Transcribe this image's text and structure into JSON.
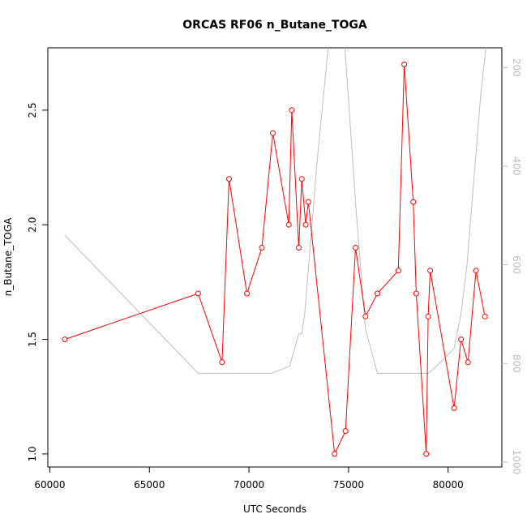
{
  "chart_data": {
    "type": "line",
    "title": "ORCAS RF06 n_Butane_TOGA",
    "xlabel": "UTC Seconds",
    "ylabel": "n_Butane_TOGA",
    "xlim": [
      59900,
      82700
    ],
    "ylim": [
      0.943,
      2.772
    ],
    "x_ticks": [
      60000,
      65000,
      70000,
      75000,
      80000
    ],
    "y_ticks": [
      1.0,
      1.5,
      2.0,
      2.5
    ],
    "y_tick_labels": [
      "1.0",
      "1.5",
      "2.0",
      "2.5"
    ],
    "grid": false,
    "series": [
      {
        "color": "#ff0000",
        "marker": "open-circle",
        "x": [
          60750,
          67450,
          68650,
          69000,
          69900,
          70650,
          71200,
          72000,
          72150,
          72500,
          72650,
          72850,
          72980,
          74300,
          74850,
          75350,
          75850,
          76450,
          77500,
          77800,
          78250,
          78400,
          78900,
          79000,
          79100,
          80300,
          80650,
          81000,
          81400,
          81850
        ],
        "y": [
          1.5,
          1.7,
          1.4,
          2.2,
          1.7,
          1.9,
          2.4,
          2.0,
          2.5,
          1.9,
          2.2,
          2.0,
          2.1,
          1.0,
          1.1,
          1.9,
          1.6,
          1.7,
          1.8,
          2.7,
          2.1,
          1.7,
          1.0,
          1.6,
          1.8,
          1.2,
          1.5,
          1.4,
          1.8,
          1.6
        ]
      },
      {
        "color": "#bdbdbd",
        "axis": "right",
        "x": [
          60750,
          67450,
          71150,
          72050,
          72500,
          72650,
          72800,
          73000,
          73400,
          74000,
          74800,
          75400,
          75850,
          76450,
          77500,
          78400,
          79000,
          79300,
          80300,
          80650,
          80950,
          81350,
          81650,
          81900
        ],
        "y": [
          540,
          820,
          820,
          805,
          740,
          740,
          700,
          600,
          400,
          150,
          150,
          500,
          730,
          820,
          820,
          820,
          820,
          810,
          770,
          700,
          600,
          400,
          250,
          160
        ]
      }
    ],
    "right_axis": {
      "ticks": [
        200,
        400,
        600,
        800,
        1000
      ],
      "tick_labels": [
        "200",
        "400",
        "600",
        "800",
        "1000"
      ],
      "range_top": 160,
      "range_bottom": 1010,
      "color": "#bdbdbd"
    }
  }
}
